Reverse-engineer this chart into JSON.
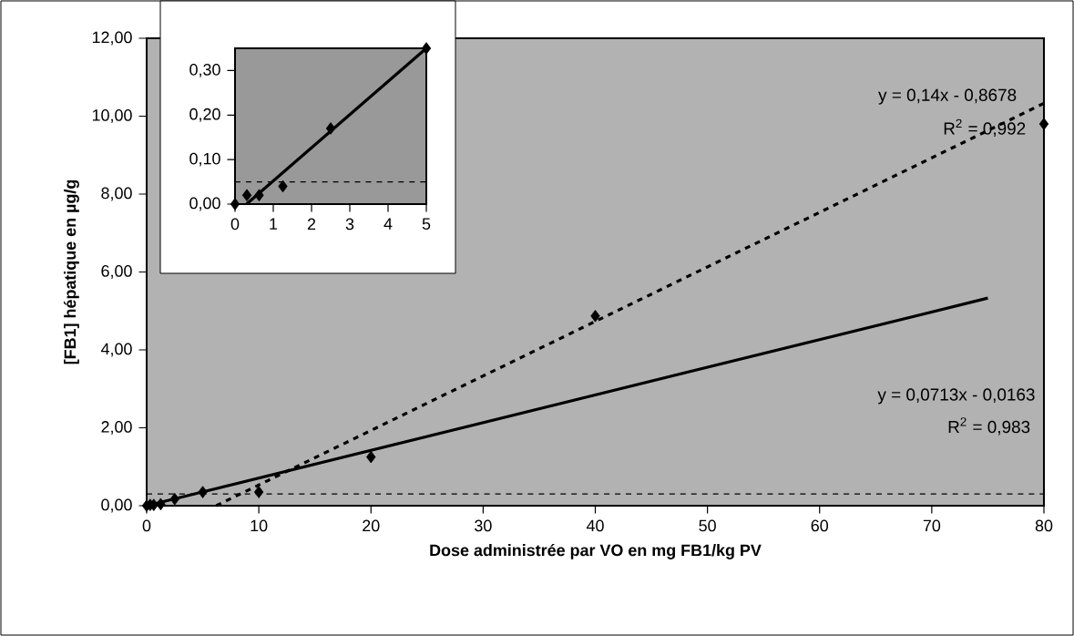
{
  "chart_data": [
    {
      "type": "scatter",
      "xlabel": "Dose administrée par VO en mg FB1/kg PV",
      "ylabel": "[FB1] hépatique en µg/g",
      "series": [
        {
          "color": "#000000",
          "marker": "diamond",
          "x": [
            0,
            0.31,
            0.63,
            1.25,
            2.5,
            5,
            10,
            20,
            40,
            80
          ],
          "values": [
            0,
            0.02,
            0.02,
            0.04,
            0.17,
            0.35,
            0.35,
            1.25,
            4.87,
            9.8
          ]
        },
        {
          "type": "line",
          "color": "#000000",
          "marker": "none",
          "line_style": "solid",
          "x": [
            0,
            75
          ],
          "values": [
            0,
            5.33
          ]
        },
        {
          "type": "line",
          "color": "#000000",
          "marker": "none",
          "line_style": "dashed",
          "x": [
            6.2,
            80
          ],
          "values": [
            0,
            10.33
          ]
        }
      ],
      "xlim": [
        0,
        80
      ],
      "ylim": [
        0,
        12
      ],
      "xticks": [
        0,
        10,
        20,
        30,
        40,
        50,
        60,
        70,
        80
      ],
      "yticks": [
        {
          "value": 0,
          "label": "0,00"
        },
        {
          "value": 2,
          "label": "2,00"
        },
        {
          "value": 4,
          "label": "4,00"
        },
        {
          "value": 6,
          "label": "6,00"
        },
        {
          "value": 8,
          "label": "8,00"
        },
        {
          "value": 10,
          "label": "10,00"
        },
        {
          "value": 12,
          "label": "12,00"
        }
      ],
      "ref_lines": [
        {
          "axis": "y",
          "value": 0.3,
          "line_style": "dashed",
          "color": "#000000"
        }
      ],
      "annotations": [
        "y = 0,14x - 0,8678",
        "R$^{2}$ = 0,992",
        "y = 0,0713x - 0,0163",
        "R$^{2}$ = 0,983"
      ]
    },
    {
      "type": "scatter",
      "series": [
        {
          "color": "#000000",
          "marker": "diamond",
          "x": [
            0,
            0.31,
            0.63,
            1.25,
            2.5,
            5
          ],
          "values": [
            0,
            0.02,
            0.02,
            0.04,
            0.17,
            0.35
          ]
        },
        {
          "type": "line",
          "color": "#000000",
          "marker": "none",
          "line_style": "solid",
          "x": [
            0.3,
            5
          ],
          "values": [
            0,
            0.35
          ]
        }
      ],
      "xlim": [
        0,
        5
      ],
      "ylim": [
        0,
        0.35
      ],
      "xticks": [
        0,
        1,
        2,
        3,
        4,
        5
      ],
      "yticks": [
        {
          "value": 0,
          "label": "0,00"
        },
        {
          "value": 0.1,
          "label": "0,10"
        },
        {
          "value": 0.2,
          "label": "0,20"
        },
        {
          "value": 0.3,
          "label": "0,30"
        }
      ],
      "ref_lines": [
        {
          "axis": "y",
          "value": 0.05,
          "line_style": "dashed",
          "color": "#000000"
        }
      ]
    }
  ]
}
